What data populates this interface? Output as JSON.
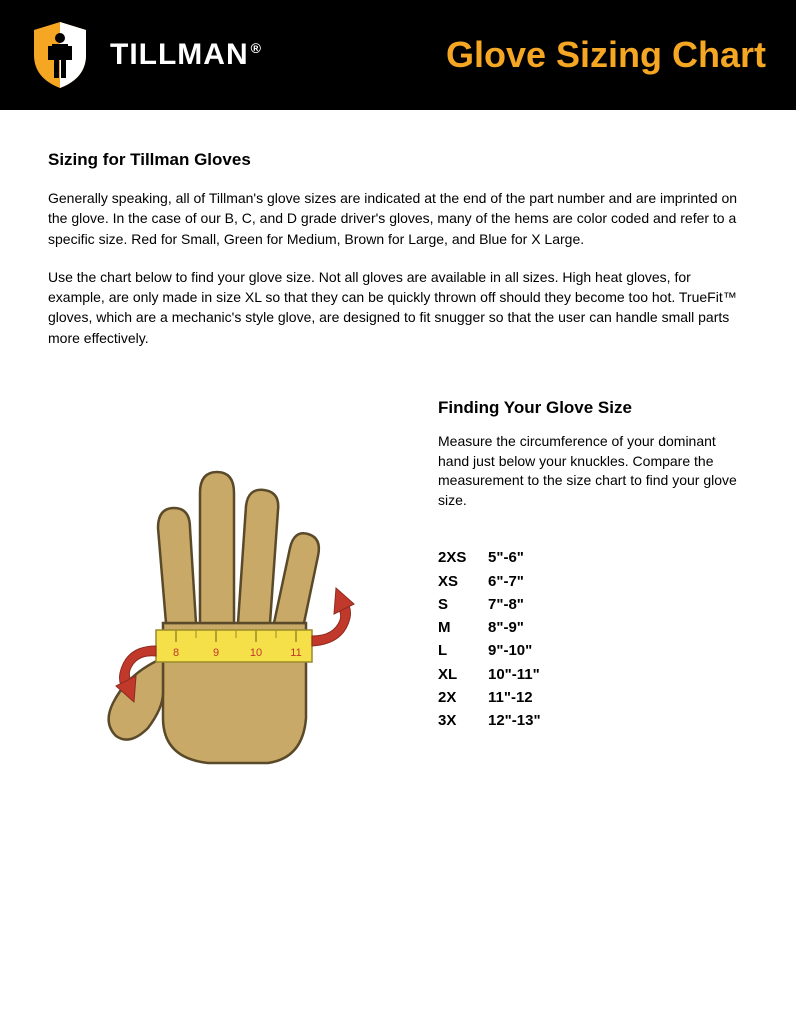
{
  "header": {
    "brand": "TILLMAN",
    "title": "Glove Sizing Chart",
    "brand_color": "#ffffff",
    "title_color": "#f5a623",
    "bg_color": "#000000"
  },
  "intro": {
    "title": "Sizing for Tillman Gloves",
    "para1": "Generally speaking, all of Tillman's glove sizes are indicated at the end of the part number and are imprinted on the glove. In the case of our B, C, and D grade driver's gloves, many of the hems are color coded and refer to a specific size. Red for Small, Green for Medium, Brown for Large, and Blue for X Large.",
    "para2": "Use the chart below to find your glove size. Not all gloves are available in all sizes. High heat gloves, for example, are only made in size XL so that they can be quickly thrown off should they become too hot. TrueFit™ gloves, which are a mechanic's style glove, are designed to fit snugger so that the user can handle small parts more effectively."
  },
  "finding": {
    "title": "Finding Your Glove Size",
    "text": "Measure the circumference of your dominant hand just below your knuckles.  Compare the measurement to the size chart to find your glove size."
  },
  "sizes": {
    "rows": [
      {
        "label": "2XS",
        "range": "5\"-6\""
      },
      {
        "label": "XS",
        "range": "6\"-7\""
      },
      {
        "label": "S",
        "range": "7\"-8\""
      },
      {
        "label": "M",
        "range": "8\"-9\""
      },
      {
        "label": "L",
        "range": "9\"-10\""
      },
      {
        "label": "XL",
        "range": "10\"-11\""
      },
      {
        "label": "2X",
        "range": "11\"-12"
      },
      {
        "label": "3X",
        "range": "12\"-13\""
      }
    ]
  },
  "hand_graphic": {
    "hand_fill": "#c9a968",
    "hand_stroke": "#5a4a2a",
    "ruler_fill": "#f5e04a",
    "ruler_text_color": "#c0392b",
    "arrow_color": "#c0392b",
    "ruler_numbers": [
      "8",
      "9",
      "10",
      "11"
    ]
  }
}
